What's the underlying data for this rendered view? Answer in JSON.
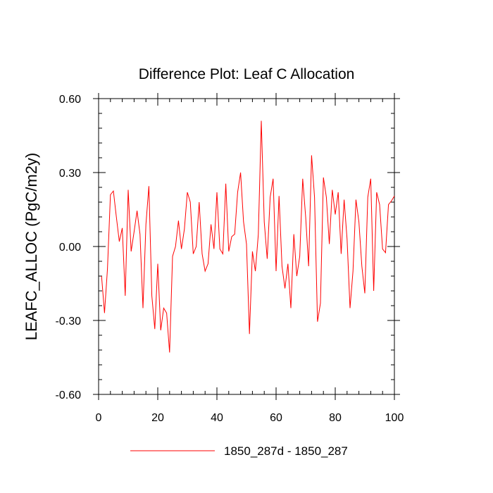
{
  "chart_data": {
    "type": "line",
    "title": "Difference Plot: Leaf C Allocation",
    "xlabel": "",
    "ylabel": "LEAFC_ALLOC  (PgC/m2y)",
    "xlim": [
      0,
      100
    ],
    "ylim": [
      -0.6,
      0.6
    ],
    "x_ticks": [
      0,
      20,
      40,
      60,
      80,
      100
    ],
    "y_ticks": [
      -0.6,
      -0.3,
      0.0,
      0.3,
      0.6
    ],
    "x_tick_labels": [
      "0",
      "20",
      "40",
      "60",
      "80",
      "100"
    ],
    "y_tick_labels": [
      "-0.60",
      "-0.30",
      "0.00",
      "0.30",
      "0.60"
    ],
    "grid": false,
    "legend_position": "bottom-center",
    "series": [
      {
        "name": "1850_287d - 1850_287",
        "color": "#ff0000",
        "x": [
          1,
          2,
          3,
          4,
          5,
          6,
          7,
          8,
          9,
          10,
          11,
          12,
          13,
          14,
          15,
          16,
          17,
          18,
          19,
          20,
          21,
          22,
          23,
          24,
          25,
          26,
          27,
          28,
          29,
          30,
          31,
          32,
          33,
          34,
          35,
          36,
          37,
          38,
          39,
          40,
          41,
          42,
          43,
          44,
          45,
          46,
          47,
          48,
          49,
          50,
          51,
          52,
          53,
          54,
          55,
          56,
          57,
          58,
          59,
          60,
          61,
          62,
          63,
          64,
          65,
          66,
          67,
          68,
          69,
          70,
          71,
          72,
          73,
          74,
          75,
          76,
          77,
          78,
          79,
          80,
          81,
          82,
          83,
          84,
          85,
          86,
          87,
          88,
          89,
          90,
          91,
          92,
          93,
          94,
          95,
          96,
          97,
          98,
          99,
          100
        ],
        "y": [
          -0.12,
          -0.27,
          -0.09,
          0.21,
          0.225,
          0.12,
          0.02,
          0.075,
          -0.2,
          0.23,
          -0.02,
          0.06,
          0.145,
          0.05,
          -0.25,
          0.09,
          0.245,
          -0.2,
          -0.335,
          -0.07,
          -0.34,
          -0.25,
          -0.27,
          -0.43,
          -0.04,
          0.0,
          0.105,
          -0.01,
          0.07,
          0.22,
          0.18,
          -0.03,
          0.0,
          0.18,
          -0.03,
          -0.1,
          -0.07,
          0.09,
          -0.01,
          0.22,
          -0.01,
          -0.03,
          0.255,
          -0.02,
          0.04,
          0.05,
          0.22,
          0.3,
          0.1,
          0.01,
          -0.355,
          -0.02,
          -0.1,
          0.05,
          0.51,
          0.1,
          -0.05,
          0.2,
          0.275,
          -0.1,
          0.205,
          -0.08,
          -0.17,
          -0.07,
          -0.25,
          0.05,
          -0.12,
          -0.04,
          0.275,
          0.12,
          -0.08,
          0.37,
          0.2,
          -0.305,
          -0.23,
          0.28,
          0.2,
          0.01,
          0.23,
          0.13,
          0.22,
          -0.03,
          0.19,
          0.03,
          -0.25,
          -0.1,
          0.19,
          0.1,
          -0.08,
          -0.19,
          0.2,
          0.275,
          -0.18,
          0.22,
          0.17,
          -0.01,
          -0.025,
          0.17,
          0.185,
          0.205
        ]
      }
    ]
  }
}
